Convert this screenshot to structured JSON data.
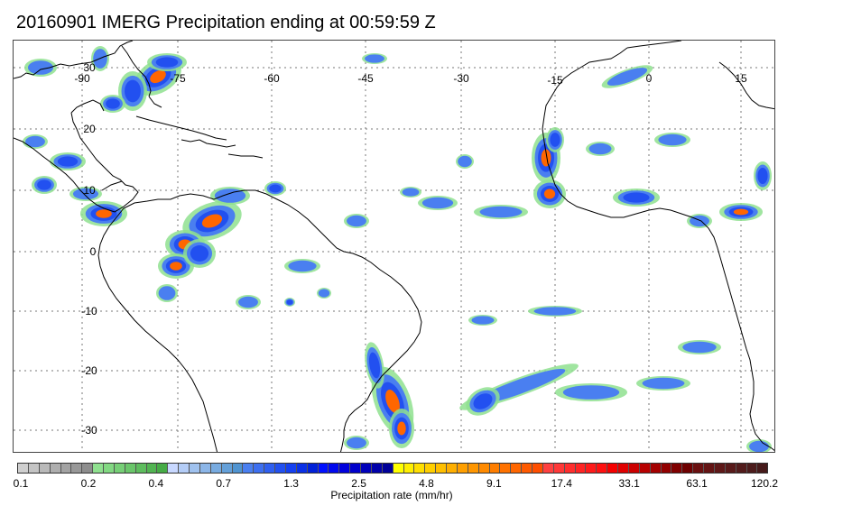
{
  "title": "20160901 IMERG Precipitation ending at 00:59:59 Z",
  "map": {
    "longitude_labels": [
      "-90",
      "-75",
      "-60",
      "-45",
      "-30",
      "-15",
      "0",
      "15"
    ],
    "latitude_labels": [
      "30",
      "20",
      "10",
      "0",
      "-10",
      "-20",
      "-30"
    ],
    "gridline_style": "dotted",
    "coastline_color": "#000000"
  },
  "colorbar": {
    "label": "Precipitation rate (mm/hr)",
    "tick_labels": [
      "0.1",
      "0.2",
      "0.4",
      "0.7",
      "1.3",
      "2.5",
      "4.8",
      "9.1",
      "17.4",
      "33.1",
      "63.1",
      "120.2"
    ],
    "colors": [
      "#cfcfcf",
      "#c4c4c4",
      "#b9b9b9",
      "#aeaeae",
      "#a3a3a3",
      "#989898",
      "#8d8d8d",
      "#8fe08f",
      "#82d882",
      "#76cf76",
      "#6ac66a",
      "#5ebd5e",
      "#52b452",
      "#46ab46",
      "#c8d8ff",
      "#b4cdf7",
      "#a0c2ef",
      "#8cb6e8",
      "#78abe0",
      "#64a0d9",
      "#5094d1",
      "#4a7ff0",
      "#3d6ff0",
      "#2f5ff0",
      "#2250f0",
      "#1540f0",
      "#0a30e6",
      "#0020d8",
      "#0010ff",
      "#0008ee",
      "#0000dd",
      "#0000cc",
      "#0000bb",
      "#0000aa",
      "#000099",
      "#ffff00",
      "#ffef00",
      "#ffdf00",
      "#ffcf00",
      "#ffbf00",
      "#ffaf00",
      "#ff9f00",
      "#ff9600",
      "#ff8a00",
      "#ff7e00",
      "#ff7200",
      "#ff6600",
      "#ff5a00",
      "#ff4e00",
      "#ff4040",
      "#ff3838",
      "#ff2e2e",
      "#ff2424",
      "#ff1a1a",
      "#ff1010",
      "#f50000",
      "#e00000",
      "#cc0000",
      "#b80000",
      "#a40000",
      "#920000",
      "#800000",
      "#6e0000",
      "#6a1010",
      "#641414",
      "#5e1818",
      "#581a1a",
      "#521c1c",
      "#4c1c1c",
      "#461a1a"
    ]
  }
}
